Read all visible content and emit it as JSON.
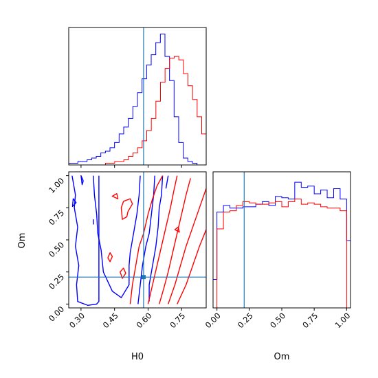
{
  "chart_data": {
    "type": "corner",
    "parameters": [
      "H0",
      "Om"
    ],
    "truth": {
      "H0": 0.58,
      "Om": 0.21
    },
    "axes": {
      "H0": {
        "label": "H0",
        "lim": [
          0.245,
          0.86
        ],
        "ticks": [
          0.3,
          0.45,
          0.6,
          0.75
        ],
        "tick_labels": [
          "0.30",
          "0.45",
          "0.60",
          "0.75"
        ]
      },
      "Om": {
        "label": "Om",
        "lim": [
          -0.03,
          1.03
        ],
        "ticks": [
          0.0,
          0.25,
          0.5,
          0.75,
          1.0
        ],
        "tick_labels": [
          "0.00",
          "0.25",
          "0.50",
          "0.75",
          "1.00"
        ]
      }
    },
    "colors": {
      "blue": "#0000ff",
      "red": "#ff0000",
      "truth": "#1f77b4"
    },
    "hist_H0": {
      "bin_width": 0.0205,
      "series": [
        {
          "color": "blue",
          "bin_left": 0.245,
          "counts": [
            1,
            1,
            2,
            2,
            3,
            4,
            5,
            7,
            8,
            10,
            13,
            18,
            22,
            27,
            34,
            42,
            50,
            58,
            64,
            71,
            76,
            63,
            49,
            28,
            13,
            4,
            2,
            1,
            0,
            0
          ]
        },
        {
          "color": "red",
          "bin_left": 0.4095,
          "counts": [
            1,
            1,
            2,
            2,
            3,
            5,
            7,
            10,
            14,
            20,
            27,
            37,
            48,
            56,
            62,
            63,
            61,
            53,
            46,
            38,
            28,
            18,
            9,
            1
          ]
        }
      ]
    },
    "hist_Om": {
      "bin_width": 0.05,
      "series": [
        {
          "color": "blue",
          "bin_left": -0.05,
          "counts": [
            0.22,
            0.74,
            0.79,
            0.77,
            0.77,
            0.78,
            0.78,
            0.8,
            0.82,
            0.79,
            0.86,
            0.85,
            0.84,
            0.97,
            0.93,
            0.94,
            0.88,
            0.91,
            0.85,
            0.92,
            0.84,
            0.52
          ]
        },
        {
          "color": "red",
          "bin_left": -0.05,
          "counts": [
            0.0,
            0.61,
            0.74,
            0.75,
            0.79,
            0.82,
            0.81,
            0.8,
            0.8,
            0.81,
            0.82,
            0.78,
            0.82,
            0.84,
            0.8,
            0.81,
            0.8,
            0.78,
            0.77,
            0.77,
            0.75,
            0.0
          ]
        }
      ]
    },
    "contours": [
      {
        "color": "blue",
        "levels": [
          {
            "points": [
              [
                0.26,
                1.0
              ],
              [
                0.275,
                0.85
              ],
              [
                0.27,
                0.75
              ],
              [
                0.285,
                0.6
              ],
              [
                0.275,
                0.45
              ],
              [
                0.29,
                0.3
              ],
              [
                0.28,
                0.15
              ],
              [
                0.285,
                0.02
              ],
              [
                0.33,
                -0.01
              ],
              [
                0.37,
                0.0
              ],
              [
                0.38,
                0.02
              ],
              [
                0.38,
                1.0
              ]
            ],
            "closed": false
          },
          {
            "points": [
              [
                0.355,
                1.0
              ],
              [
                0.36,
                0.85
              ],
              [
                0.37,
                0.7
              ],
              [
                0.375,
                0.55
              ],
              [
                0.39,
                0.42
              ],
              [
                0.4,
                0.25
              ],
              [
                0.44,
                0.1
              ],
              [
                0.48,
                0.05
              ],
              [
                0.515,
                0.15
              ],
              [
                0.515,
                0.3
              ],
              [
                0.52,
                0.4
              ],
              [
                0.53,
                0.5
              ],
              [
                0.54,
                0.6
              ],
              [
                0.55,
                0.7
              ],
              [
                0.56,
                0.85
              ],
              [
                0.565,
                1.0
              ]
            ],
            "closed": false
          },
          {
            "points": [
              [
                0.555,
                0.0
              ],
              [
                0.565,
                0.15
              ],
              [
                0.575,
                0.3
              ],
              [
                0.59,
                0.45
              ],
              [
                0.605,
                0.55
              ],
              [
                0.615,
                0.7
              ],
              [
                0.625,
                0.85
              ],
              [
                0.63,
                1.0
              ]
            ],
            "closed": false
          },
          {
            "points": [
              [
                0.605,
                0.02
              ],
              [
                0.605,
                0.15
              ],
              [
                0.62,
                0.3
              ],
              [
                0.635,
                0.45
              ],
              [
                0.645,
                0.6
              ],
              [
                0.65,
                0.75
              ],
              [
                0.66,
                0.85
              ],
              [
                0.665,
                1.0
              ]
            ],
            "closed": false
          },
          {
            "points": [
              [
                0.68,
                0.9
              ],
              [
                0.69,
                1.0
              ]
            ],
            "closed": false
          },
          {
            "points": [
              [
                0.265,
                0.82
              ],
              [
                0.278,
                0.79
              ],
              [
                0.262,
                0.76
              ],
              [
                0.265,
                0.82
              ]
            ],
            "closed": true
          },
          {
            "points": [
              [
                0.3,
                1.0
              ],
              [
                0.31,
                0.96
              ],
              [
                0.305,
                0.93
              ],
              [
                0.3,
                1.0
              ]
            ],
            "closed": true
          },
          {
            "points": [
              [
                0.355,
                0.66
              ],
              [
                0.356,
                0.62
              ]
            ],
            "closed": false
          }
        ]
      },
      {
        "color": "red",
        "levels": [
          {
            "points": [
              [
                0.52,
                0.0
              ],
              [
                0.53,
                0.15
              ],
              [
                0.545,
                0.3
              ],
              [
                0.56,
                0.45
              ],
              [
                0.58,
                0.55
              ],
              [
                0.6,
                0.7
              ],
              [
                0.62,
                0.82
              ],
              [
                0.64,
                0.92
              ],
              [
                0.665,
                1.0
              ]
            ],
            "closed": false
          },
          {
            "points": [
              [
                0.6,
                0.0
              ],
              [
                0.62,
                0.15
              ],
              [
                0.64,
                0.3
              ],
              [
                0.66,
                0.45
              ],
              [
                0.68,
                0.6
              ],
              [
                0.7,
                0.75
              ],
              [
                0.715,
                0.88
              ],
              [
                0.73,
                1.0
              ]
            ],
            "closed": false
          },
          {
            "points": [
              [
                0.65,
                0.0
              ],
              [
                0.67,
                0.12
              ],
              [
                0.69,
                0.25
              ],
              [
                0.71,
                0.4
              ],
              [
                0.73,
                0.55
              ],
              [
                0.75,
                0.7
              ],
              [
                0.77,
                0.85
              ],
              [
                0.79,
                0.98
              ]
            ],
            "closed": false
          },
          {
            "points": [
              [
                0.69,
                0.0
              ],
              [
                0.72,
                0.15
              ],
              [
                0.745,
                0.3
              ],
              [
                0.77,
                0.45
              ],
              [
                0.8,
                0.6
              ],
              [
                0.83,
                0.75
              ],
              [
                0.86,
                0.9
              ]
            ],
            "closed": false
          },
          {
            "points": [
              [
                0.73,
                0.0
              ],
              [
                0.77,
                0.15
              ],
              [
                0.8,
                0.3
              ],
              [
                0.83,
                0.45
              ],
              [
                0.86,
                0.58
              ]
            ],
            "closed": false
          },
          {
            "points": [
              [
                0.48,
                0.75
              ],
              [
                0.49,
                0.8
              ],
              [
                0.52,
                0.82
              ],
              [
                0.53,
                0.78
              ],
              [
                0.51,
                0.72
              ],
              [
                0.505,
                0.68
              ],
              [
                0.485,
                0.66
              ],
              [
                0.48,
                0.75
              ]
            ],
            "closed": true
          },
          {
            "points": [
              [
                0.42,
                0.36
              ],
              [
                0.43,
                0.4
              ],
              [
                0.44,
                0.37
              ],
              [
                0.43,
                0.33
              ],
              [
                0.42,
                0.36
              ]
            ],
            "closed": true
          },
          {
            "points": [
              [
                0.44,
                0.84
              ],
              [
                0.46,
                0.86
              ],
              [
                0.465,
                0.82
              ],
              [
                0.44,
                0.84
              ]
            ],
            "closed": true
          },
          {
            "points": [
              [
                0.475,
                0.25
              ],
              [
                0.49,
                0.28
              ],
              [
                0.5,
                0.24
              ],
              [
                0.485,
                0.2
              ],
              [
                0.475,
                0.25
              ]
            ],
            "closed": true
          },
          {
            "points": [
              [
                0.72,
                0.58
              ],
              [
                0.735,
                0.6
              ],
              [
                0.74,
                0.56
              ],
              [
                0.72,
                0.58
              ]
            ],
            "closed": true
          }
        ]
      }
    ]
  }
}
